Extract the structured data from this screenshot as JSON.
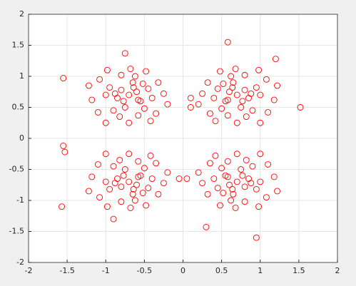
{
  "chart_data": {
    "type": "scatter",
    "color": "#ff0000",
    "grid": true,
    "xlim": [
      -2,
      2
    ],
    "ylim": [
      -2,
      2
    ],
    "xticks": [
      -2,
      -1.5,
      -1,
      -0.5,
      0,
      0.5,
      1,
      1.5,
      2
    ],
    "yticks": [
      -2,
      -1.5,
      -1,
      -0.5,
      0,
      0.5,
      1,
      1.5,
      2
    ],
    "x": [
      -0.7,
      -0.6,
      -0.8,
      -0.55,
      -0.85,
      -0.65,
      -0.75,
      -0.45,
      -0.95,
      -0.5,
      -0.9,
      -0.4,
      -1.0,
      -0.62,
      -0.8,
      -0.58,
      -0.82,
      -0.32,
      -1.08,
      -0.35,
      -1.1,
      -0.25,
      -1.18,
      -0.68,
      -0.7,
      -0.48,
      -0.98,
      -0.42,
      -1.0,
      -0.2,
      -1.22,
      -0.64,
      -0.77,
      -0.52,
      -0.88,
      -0.58,
      0.7,
      0.6,
      0.8,
      0.55,
      0.85,
      0.65,
      0.75,
      0.45,
      0.95,
      0.5,
      0.9,
      0.4,
      1.0,
      0.62,
      0.8,
      0.58,
      0.82,
      0.32,
      1.08,
      0.35,
      1.1,
      0.25,
      1.18,
      0.68,
      0.7,
      0.48,
      0.98,
      0.42,
      1.0,
      0.2,
      1.22,
      0.64,
      0.77,
      0.52,
      0.88,
      0.58,
      -0.7,
      -0.6,
      -0.8,
      -0.55,
      -0.85,
      -0.65,
      -0.75,
      -0.45,
      -0.95,
      -0.5,
      -0.9,
      -0.4,
      -1.0,
      -0.62,
      -0.8,
      -0.58,
      -0.82,
      -0.32,
      -1.08,
      -0.35,
      -1.1,
      -0.25,
      -1.18,
      -0.68,
      -0.7,
      -0.48,
      -0.98,
      -0.42,
      -1.0,
      -0.2,
      -1.22,
      -0.64,
      -0.77,
      -0.52,
      -0.88,
      -0.58,
      0.7,
      0.6,
      0.8,
      0.55,
      0.85,
      0.65,
      0.75,
      0.45,
      0.95,
      0.5,
      0.9,
      0.4,
      1.0,
      0.62,
      0.8,
      0.58,
      0.82,
      0.32,
      1.08,
      0.35,
      1.1,
      0.25,
      1.18,
      0.68,
      0.7,
      0.48,
      0.98,
      0.42,
      1.0,
      0.2,
      1.22,
      0.64,
      0.77,
      0.52,
      0.88,
      0.58,
      -1.55,
      1.52,
      -1.55,
      -1.53,
      -1.57,
      0.58,
      0.95,
      0.3,
      -0.9,
      0.1,
      0.1,
      0.05,
      -0.05,
      1.2,
      -0.75
    ],
    "values": [
      0.7,
      0.75,
      0.78,
      0.6,
      0.65,
      0.9,
      0.5,
      0.8,
      0.82,
      0.48,
      0.45,
      0.65,
      0.7,
      1.0,
      1.02,
      0.37,
      0.35,
      0.9,
      0.95,
      0.4,
      0.42,
      0.72,
      0.62,
      1.12,
      0.25,
      1.08,
      1.1,
      0.28,
      0.25,
      0.55,
      0.85,
      0.82,
      0.6,
      0.88,
      0.72,
      0.62,
      0.7,
      0.75,
      0.78,
      0.6,
      0.65,
      0.9,
      0.5,
      0.8,
      0.82,
      0.48,
      0.45,
      0.65,
      0.7,
      1.0,
      1.02,
      0.37,
      0.35,
      0.9,
      0.95,
      0.4,
      0.42,
      0.72,
      0.62,
      1.12,
      0.25,
      1.08,
      1.1,
      0.28,
      0.25,
      0.55,
      0.85,
      0.82,
      0.6,
      0.88,
      0.72,
      0.62,
      -0.7,
      -0.75,
      -0.78,
      -0.6,
      -0.65,
      -0.9,
      -0.5,
      -0.8,
      -0.82,
      -0.48,
      -0.45,
      -0.65,
      -0.7,
      -1.0,
      -1.02,
      -0.37,
      -0.35,
      -0.9,
      -0.95,
      -0.4,
      -0.42,
      -0.72,
      -0.62,
      -1.12,
      -0.25,
      -1.08,
      -1.1,
      -0.28,
      -0.25,
      -0.55,
      -0.85,
      -0.82,
      -0.6,
      -0.88,
      -0.72,
      -0.62,
      -0.7,
      -0.75,
      -0.78,
      -0.6,
      -0.65,
      -0.9,
      -0.5,
      -0.8,
      -0.82,
      -0.48,
      -0.45,
      -0.65,
      -0.7,
      -1.0,
      -1.02,
      -0.37,
      -0.35,
      -0.9,
      -0.95,
      -0.4,
      -0.42,
      -0.72,
      -0.62,
      -1.12,
      -0.25,
      -1.08,
      -1.1,
      -0.28,
      -0.25,
      -0.55,
      -0.85,
      -0.82,
      -0.6,
      -0.88,
      -0.72,
      -0.62,
      0.97,
      0.5,
      -0.12,
      -0.22,
      -1.1,
      1.55,
      -1.6,
      -1.43,
      -1.3,
      0.5,
      0.65,
      -0.65,
      -0.65,
      1.28,
      1.37
    ]
  }
}
